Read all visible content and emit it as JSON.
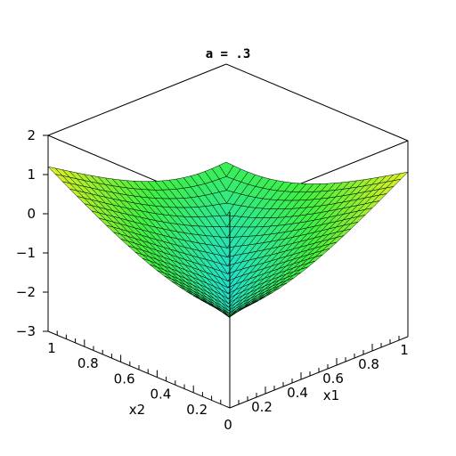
{
  "chart_data": {
    "type": "surface3d",
    "title": "a = .3",
    "xlabel": "x1",
    "ylabel": "x2",
    "zlabel": "",
    "x_range": [
      0,
      1
    ],
    "y_range": [
      0,
      1
    ],
    "z_range": [
      -3,
      2
    ],
    "x_ticks": [
      "0.2",
      "0.4",
      "0.6",
      "0.8",
      "1"
    ],
    "y_ticks": [
      "0",
      "0.2",
      "0.4",
      "0.6",
      "0.8",
      "1"
    ],
    "z_ticks": [
      "2",
      "1",
      "0",
      "−1",
      "−2",
      "−3"
    ],
    "surface": {
      "grid": 25,
      "corner_values": {
        "x0_y0": -0.6,
        "x1_y0": 1.2,
        "x0_y1": 1.2,
        "x1_y1": -0.5
      },
      "min_value": -1.9,
      "description_note_removed": true
    },
    "colors": {
      "surface_low": "#20e0d0",
      "surface_mid": "#40f040",
      "surface_high": "#f0f020",
      "mesh": "#000000",
      "frame": "#000000"
    },
    "box": true,
    "grid": false
  }
}
